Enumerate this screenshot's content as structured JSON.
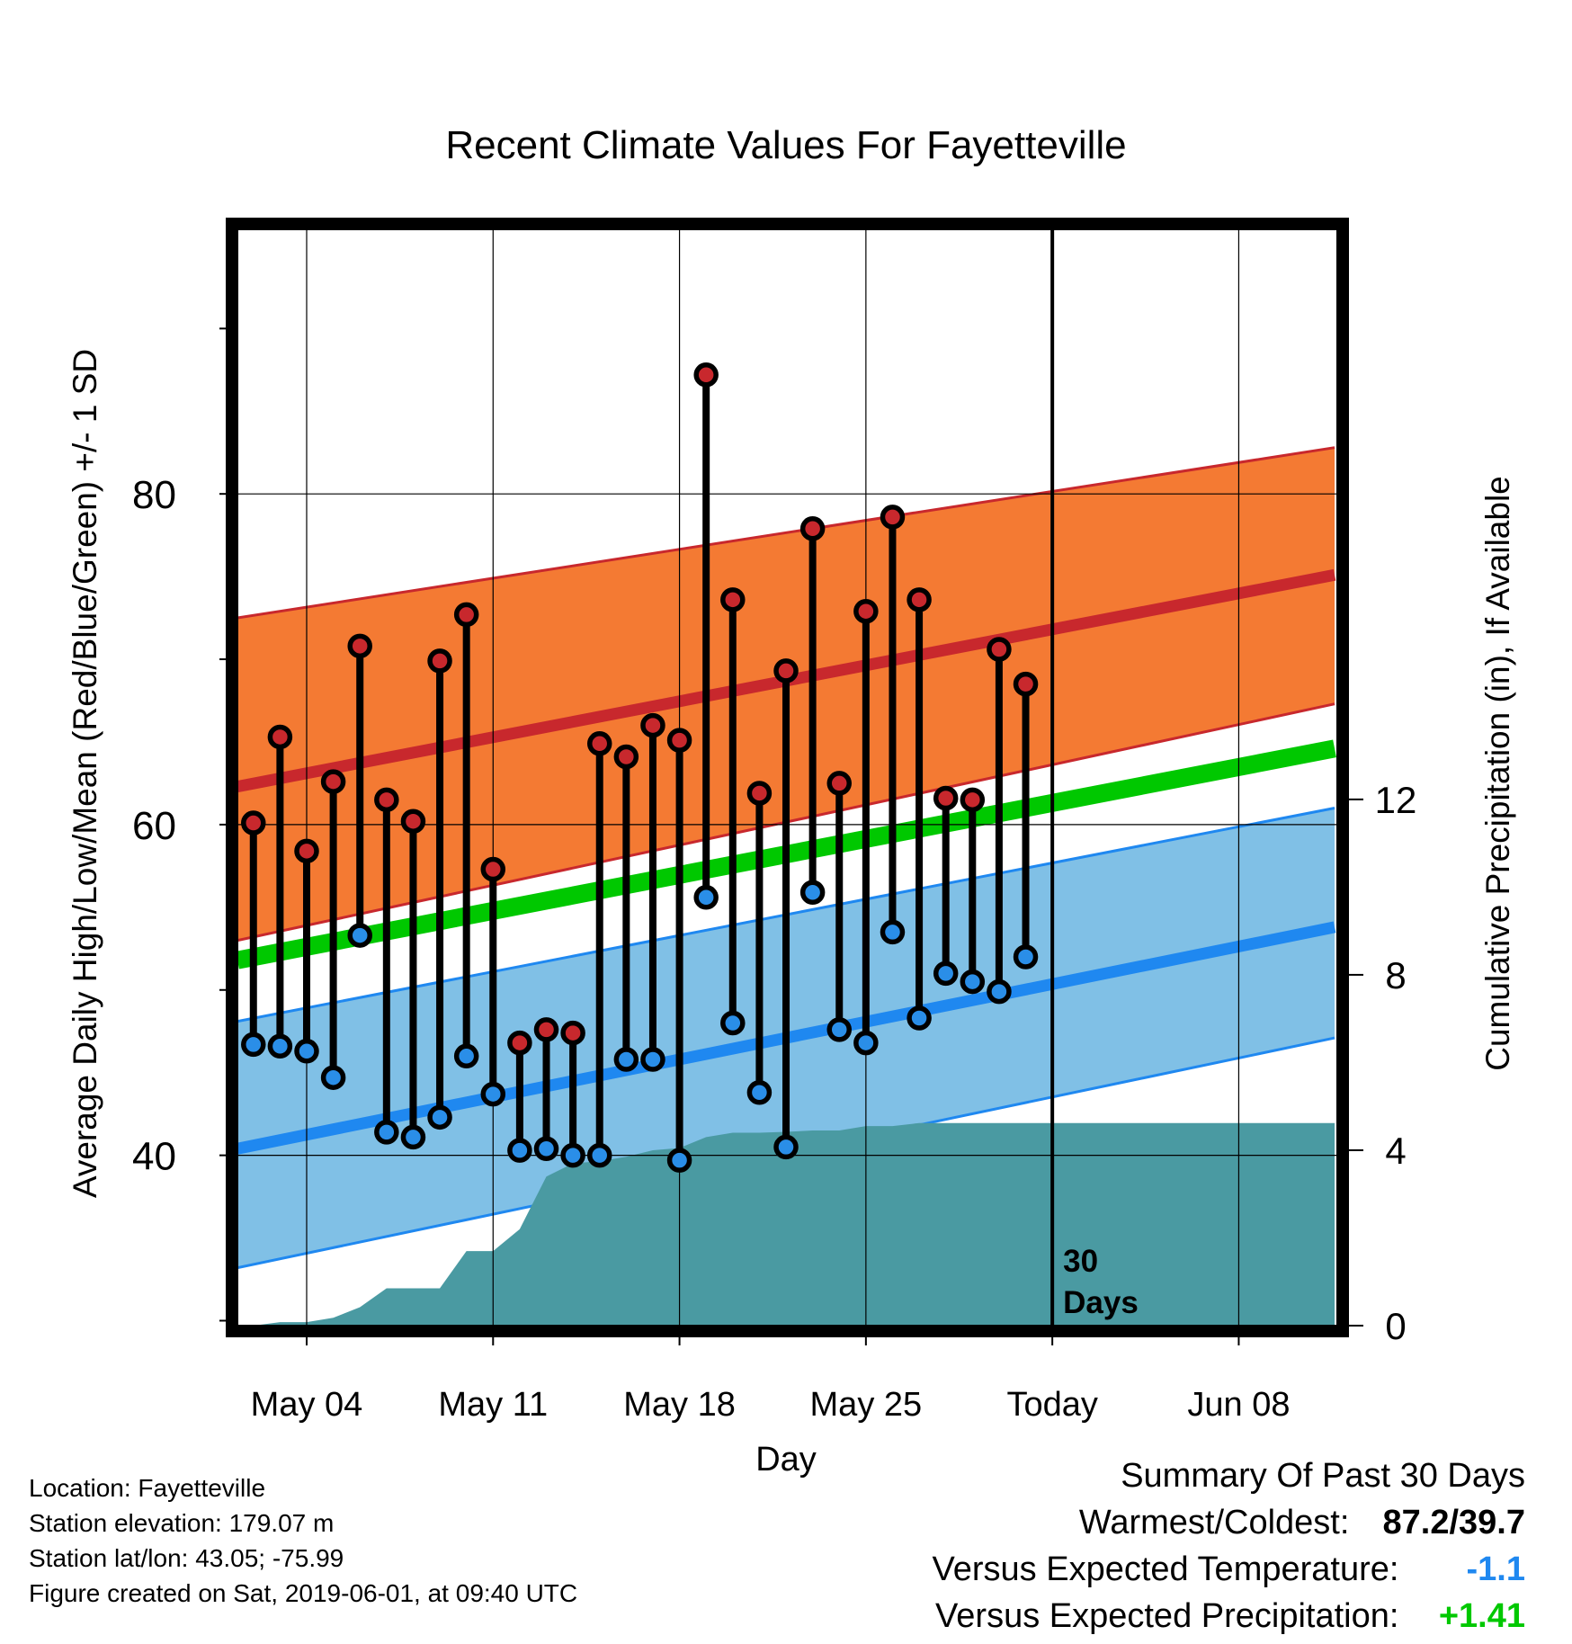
{
  "chart_data": {
    "type": "line",
    "title": "Recent Climate Values For Fayetteville",
    "xlabel": "Day",
    "ylabel": "Average Daily High/Low/Mean (Red/Blue/Green) +/- 1 SD",
    "y2label": "Cumulative Precipitation (in), If Available",
    "x_tick_labels": [
      "May 04",
      "May 11",
      "May 18",
      "May 25",
      "Today",
      "Jun 08"
    ],
    "x_tick_days": [
      4,
      11,
      18,
      25,
      32,
      39
    ],
    "y_ticks": [
      40,
      60,
      80
    ],
    "y_minor_ticks": [
      30,
      50,
      70,
      90
    ],
    "ylim": [
      29.7,
      96.0
    ],
    "y2_ticks": [
      0,
      4,
      8,
      12
    ],
    "y2lim": [
      0,
      25.0
    ],
    "xlim": [
      1.4,
      42.7
    ],
    "grid": true,
    "today_day": 32,
    "today_annotation": [
      "30",
      "Days"
    ],
    "normal_bands": {
      "x_range": [
        1.4,
        42.6
      ],
      "high_mean": [
        62.3,
        75.1
      ],
      "high_upper": [
        72.5,
        82.8
      ],
      "high_lower": [
        53.0,
        67.3
      ],
      "low_mean": [
        40.4,
        53.8
      ],
      "low_upper": [
        48.1,
        61.0
      ],
      "low_lower": [
        33.2,
        47.1
      ],
      "mean": [
        51.8,
        64.6
      ]
    },
    "daily": {
      "days": [
        2,
        3,
        4,
        5,
        6,
        7,
        8,
        9,
        10,
        11,
        12,
        13,
        14,
        15,
        16,
        17,
        18,
        19,
        20,
        21,
        22,
        23,
        24,
        25,
        26,
        27,
        28,
        29,
        30,
        31
      ],
      "highs": [
        60.1,
        65.3,
        58.4,
        62.6,
        70.8,
        61.5,
        60.2,
        69.9,
        72.7,
        57.3,
        46.8,
        47.6,
        47.4,
        64.9,
        64.1,
        66.0,
        65.1,
        87.2,
        73.6,
        61.9,
        69.3,
        77.9,
        62.5,
        72.9,
        78.6,
        73.6,
        61.6,
        61.5,
        70.6,
        68.5
      ],
      "lows": [
        46.7,
        46.6,
        46.3,
        44.7,
        53.3,
        41.4,
        41.1,
        42.3,
        46.0,
        43.7,
        40.3,
        40.4,
        40.0,
        40.0,
        45.8,
        45.8,
        39.7,
        55.6,
        48.0,
        43.8,
        40.5,
        55.9,
        47.6,
        46.8,
        53.5,
        48.3,
        51.0,
        50.5,
        49.9,
        52.0
      ]
    },
    "precip": {
      "days": [
        1.4,
        2.0,
        3.0,
        4.0,
        5.0,
        6.0,
        7.0,
        8.0,
        9.0,
        10.0,
        11.0,
        12.0,
        13.0,
        14.0,
        15.0,
        16.0,
        17.0,
        18.0,
        19.0,
        20.0,
        21.0,
        22.0,
        23.0,
        24.0,
        25.0,
        26.0,
        27.0,
        28.0,
        29.0,
        30.0,
        31.0,
        32.0,
        42.6
      ],
      "values": [
        0.0,
        0.0,
        0.08,
        0.08,
        0.18,
        0.42,
        0.85,
        0.85,
        0.85,
        1.7,
        1.7,
        2.2,
        3.4,
        3.7,
        3.75,
        3.85,
        4.0,
        4.05,
        4.3,
        4.4,
        4.4,
        4.42,
        4.45,
        4.45,
        4.55,
        4.55,
        4.62,
        4.62,
        4.62,
        4.62,
        4.62,
        4.62,
        4.62
      ]
    },
    "colors": {
      "high_band": "#f47a33",
      "high_line": "#c8282d",
      "low_band": "#80c0e6",
      "low_line": "#1f88f0",
      "mean_line": "#00c800",
      "precip": "#4a9aa2",
      "high_marker": "#c8282d",
      "low_marker": "#2a8ee8"
    }
  },
  "footer": {
    "location": "Location: Fayetteville",
    "elevation": "Station elevation: 179.07 m",
    "latlon": "Station lat/lon: 43.05; -75.99",
    "created": "Figure created on Sat, 2019-06-01, at 09:40 UTC"
  },
  "summary": {
    "heading": "Summary Of Past 30 Days",
    "warmest_label": "Warmest/Coldest:",
    "warmest_value": "87.2/39.7",
    "temp_label": "Versus Expected Temperature:",
    "temp_value": "-1.1",
    "temp_color": "#1f88f0",
    "precip_label": "Versus Expected Precipitation:",
    "precip_value": "+1.41",
    "precip_color": "#00c800"
  }
}
